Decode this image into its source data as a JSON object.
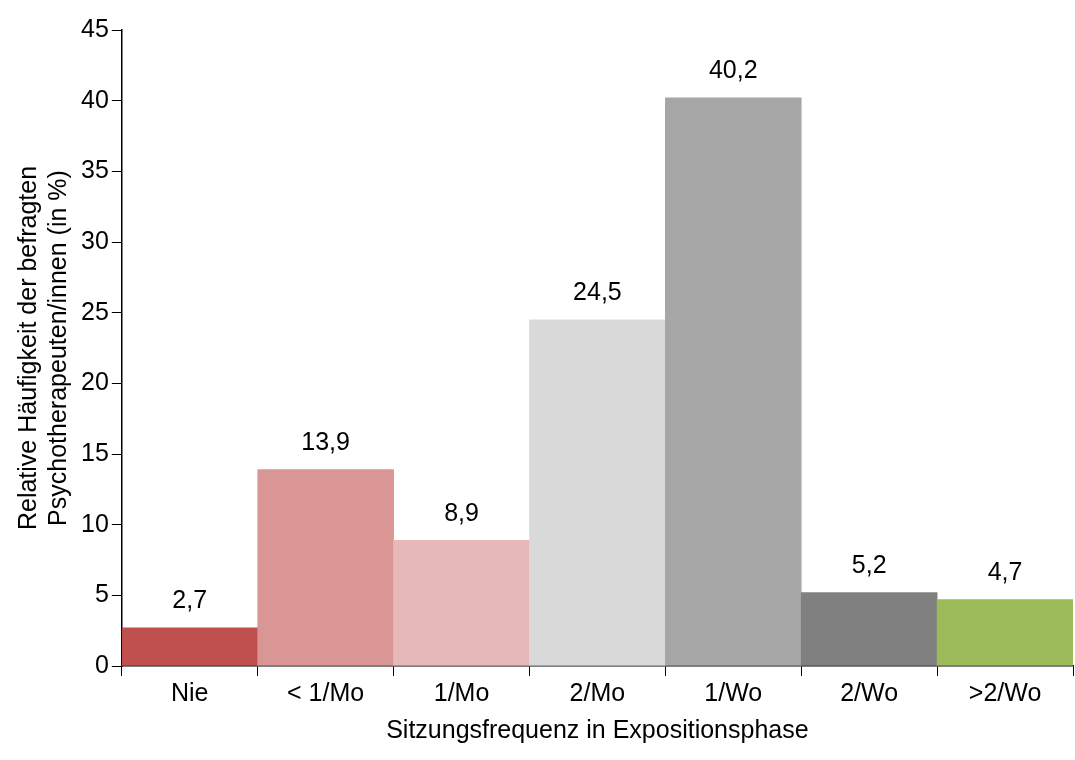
{
  "chart_data": {
    "type": "bar",
    "xlabel": "Sitzungsfrequenz in Expositionsphase",
    "ylabel": "Relative Häufigkeit der befragten\nPsychotherapeuten/innen (in %)",
    "categories": [
      "Nie",
      "< 1/Mo",
      "1/Mo",
      "2/Mo",
      "1/Wo",
      "2/Wo",
      ">2/Wo"
    ],
    "values": [
      2.7,
      13.9,
      8.9,
      24.5,
      40.2,
      5.2,
      4.7
    ],
    "value_labels": [
      "2,7",
      "13,9",
      "8,9",
      "24,5",
      "40,2",
      "5,2",
      "4,7"
    ],
    "colors": [
      "#c0504d",
      "#d99694",
      "#e6b9b8",
      "#d9d9d9",
      "#a6a6a6",
      "#808080",
      "#9bbb59"
    ],
    "ylim": [
      0,
      45
    ],
    "yticks": [
      0,
      5,
      10,
      15,
      20,
      25,
      30,
      35,
      40,
      45
    ],
    "grid": false,
    "legend": false
  }
}
